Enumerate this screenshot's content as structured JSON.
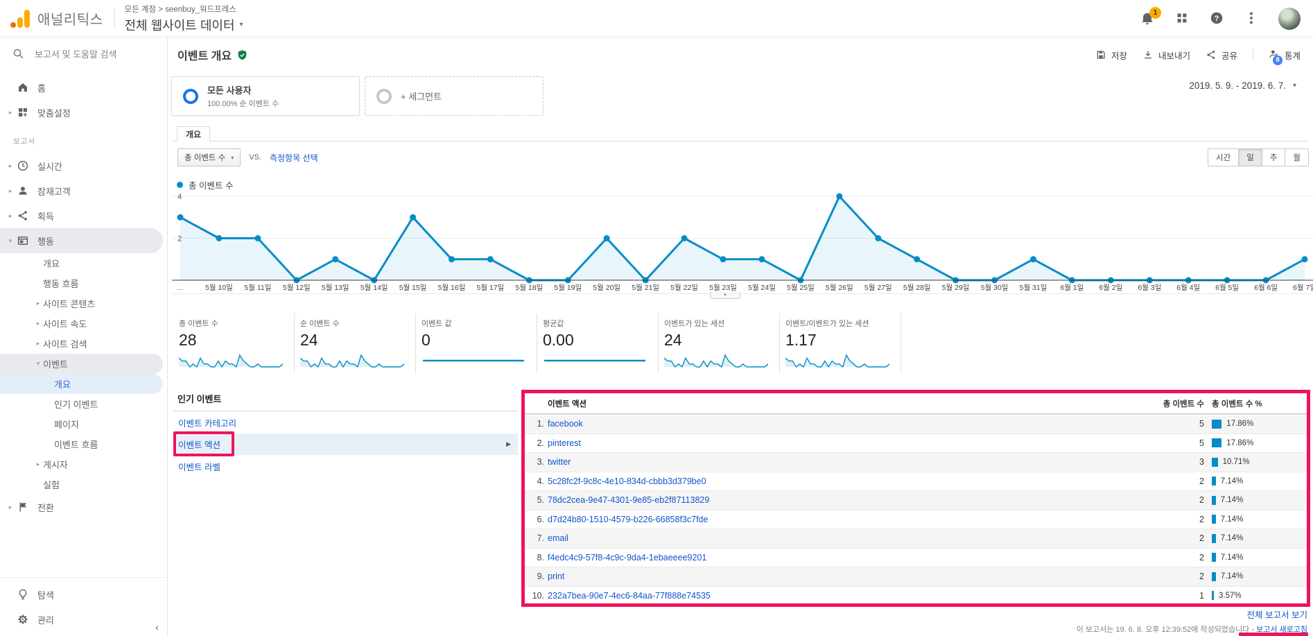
{
  "header": {
    "logo_text": "애널리틱스",
    "breadcrumb": "모든 계정 > seenbuy_워드프레스",
    "property_title": "전체 웹사이트 데이터",
    "notification_count": "1"
  },
  "sidebar": {
    "search_placeholder": "보고서 및 도움말 검색",
    "items": [
      {
        "id": "home",
        "icon": "home",
        "label": "홈",
        "indent": 0
      },
      {
        "id": "customization",
        "icon": "customization",
        "label": "맞춤설정",
        "indent": 0,
        "arrow": "right"
      },
      {
        "section": "보고서"
      },
      {
        "id": "realtime",
        "icon": "clock",
        "label": "실시간",
        "indent": 0,
        "arrow": "right"
      },
      {
        "id": "audience",
        "icon": "person",
        "label": "잠재고객",
        "indent": 0,
        "arrow": "right"
      },
      {
        "id": "acquisition",
        "icon": "acquisition",
        "label": "획득",
        "indent": 0,
        "arrow": "right"
      },
      {
        "id": "behavior",
        "icon": "behavior",
        "label": "행동",
        "indent": 0,
        "arrow": "down",
        "selected": true
      },
      {
        "id": "behavior-overview",
        "label": "개요",
        "indent": 1
      },
      {
        "id": "behavior-flow",
        "label": "행동 흐름",
        "indent": 1
      },
      {
        "id": "site-content",
        "label": "사이트 콘텐츠",
        "indent": 1,
        "arrow": "right"
      },
      {
        "id": "site-speed",
        "label": "사이트 속도",
        "indent": 1,
        "arrow": "right"
      },
      {
        "id": "site-search",
        "label": "사이트 검색",
        "indent": 1,
        "arrow": "right"
      },
      {
        "id": "events",
        "label": "이벤트",
        "indent": 1,
        "arrow": "down",
        "selected": true
      },
      {
        "id": "events-overview",
        "label": "개요",
        "indent": 2,
        "active": true
      },
      {
        "id": "top-events",
        "label": "인기 이벤트",
        "indent": 2
      },
      {
        "id": "pages",
        "label": "페이지",
        "indent": 2
      },
      {
        "id": "events-flow",
        "label": "이벤트 흐름",
        "indent": 2
      },
      {
        "id": "publisher",
        "label": "게시자",
        "indent": 1,
        "arrow": "right"
      },
      {
        "id": "experiments",
        "label": "실험",
        "indent": 1
      },
      {
        "id": "conversions",
        "icon": "flag",
        "label": "전환",
        "indent": 0,
        "arrow": "right"
      }
    ],
    "footer_items": [
      {
        "id": "discover",
        "icon": "lightbulb",
        "label": "탐색"
      },
      {
        "id": "admin",
        "icon": "gear",
        "label": "관리"
      }
    ]
  },
  "report": {
    "title": "이벤트 개요",
    "toolbar": {
      "save": "저장",
      "export": "내보내기",
      "share": "공유",
      "insights": "통계",
      "insights_badge": "8"
    },
    "segments": {
      "all_users": "모든 사용자",
      "all_users_sub": "100.00% 순 이벤트 수",
      "add_segment": "+ 세그먼트"
    },
    "date_range": "2019. 5. 9. - 2019. 6. 7.",
    "tab": "개요",
    "metric_dropdown": "총 이벤트 수",
    "vs_label": "VS.",
    "select_metric": "측정항목 선택",
    "granularity": [
      "시간",
      "일",
      "주",
      "월"
    ],
    "granularity_active": "일",
    "legend": "총 이벤트 수"
  },
  "chart_data": {
    "type": "line",
    "title": "총 이벤트 수",
    "x": [
      "...",
      "5월 10일",
      "5월 11일",
      "5월 12일",
      "5월 13일",
      "5월 14일",
      "5월 15일",
      "5월 16일",
      "5월 17일",
      "5월 18일",
      "5월 19일",
      "5월 20일",
      "5월 21일",
      "5월 22일",
      "5월 23일",
      "5월 24일",
      "5월 25일",
      "5월 26일",
      "5월 27일",
      "5월 28일",
      "5월 29일",
      "5월 30일",
      "5월 31일",
      "6월 1일",
      "6월 2일",
      "6월 3일",
      "6월 4일",
      "6월 5일",
      "6월 6일",
      "6월 7일"
    ],
    "values": [
      3,
      2,
      2,
      0,
      1,
      0,
      3,
      1,
      1,
      0,
      0,
      2,
      0,
      2,
      1,
      1,
      0,
      4,
      2,
      1,
      0,
      0,
      1,
      0,
      0,
      0,
      0,
      0,
      0,
      1
    ],
    "ylim": [
      0,
      4
    ],
    "yticks": [
      2,
      4
    ],
    "grid": true,
    "legend_position": "top-left",
    "line_color": "#058dc7"
  },
  "scorecards": [
    {
      "label": "총 이벤트 수",
      "value": "28",
      "spark": "series"
    },
    {
      "label": "순 이벤트 수",
      "value": "24",
      "spark": "series"
    },
    {
      "label": "이벤트 값",
      "value": "0",
      "spark": "flat"
    },
    {
      "label": "평균값",
      "value": "0.00",
      "spark": "flat"
    },
    {
      "label": "이벤트가 있는 세션",
      "value": "24",
      "spark": "series"
    },
    {
      "label": "이벤트/이벤트가 있는 세션",
      "value": "1.17",
      "spark": "series"
    }
  ],
  "popular_events": {
    "title": "인기 이벤트",
    "links": [
      "이벤트 카테고리",
      "이벤트 액션",
      "이벤트 라벨"
    ],
    "active_link": "이벤트 액션"
  },
  "table": {
    "headers": {
      "action": "이벤트 액션",
      "events": "총 이벤트 수",
      "percent": "총 이벤트 수 %"
    },
    "rows": [
      {
        "rank": 1,
        "action": "facebook",
        "events": "5",
        "percent": "17.86%",
        "percent_value": 17.86
      },
      {
        "rank": 2,
        "action": "pinterest",
        "events": "5",
        "percent": "17.86%",
        "percent_value": 17.86
      },
      {
        "rank": 3,
        "action": "twitter",
        "events": "3",
        "percent": "10.71%",
        "percent_value": 10.71
      },
      {
        "rank": 4,
        "action": "5c28fc2f-9c8c-4e10-834d-cbbb3d379be0",
        "events": "2",
        "percent": "7.14%",
        "percent_value": 7.14
      },
      {
        "rank": 5,
        "action": "78dc2cea-9e47-4301-9e85-eb2f87113829",
        "events": "2",
        "percent": "7.14%",
        "percent_value": 7.14
      },
      {
        "rank": 6,
        "action": "d7d24b80-1510-4579-b226-66858f3c7fde",
        "events": "2",
        "percent": "7.14%",
        "percent_value": 7.14
      },
      {
        "rank": 7,
        "action": "email",
        "events": "2",
        "percent": "7.14%",
        "percent_value": 7.14
      },
      {
        "rank": 8,
        "action": "f4edc4c9-57f8-4c9c-9da4-1ebaeeee9201",
        "events": "2",
        "percent": "7.14%",
        "percent_value": 7.14
      },
      {
        "rank": 9,
        "action": "print",
        "events": "2",
        "percent": "7.14%",
        "percent_value": 7.14
      },
      {
        "rank": 10,
        "action": "232a7bea-90e7-4ec6-84aa-77f888e74535",
        "events": "1",
        "percent": "3.57%",
        "percent_value": 3.57
      }
    ]
  },
  "footer": {
    "view_full_report": "전체 보고서 보기",
    "generated_prefix": "이 보고서는 19. 6. 8. 오후 12:39:52에 작성되었습니다 - ",
    "refresh_link": "보고서 새로고침"
  },
  "colors": {
    "accent_blue": "#058dc7",
    "link_blue": "#1155cc",
    "annotation_pink": "#ed145b",
    "badge_amber": "#f9ab00",
    "shield_green": "#0b8043"
  }
}
